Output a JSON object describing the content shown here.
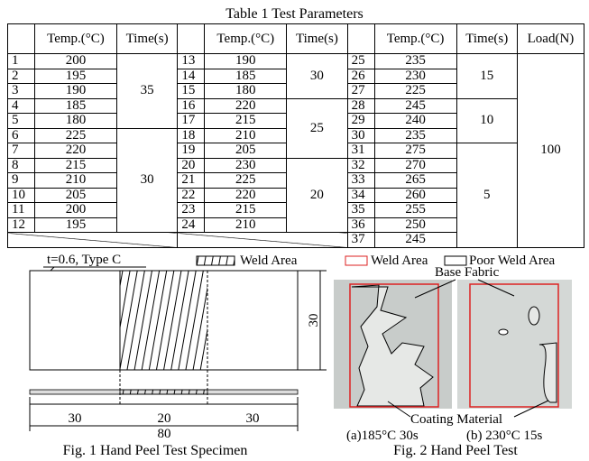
{
  "table": {
    "title": "Table 1 Test Parameters",
    "headers": [
      "Temp.(°C)",
      "Time(s)",
      "Temp.(°C)",
      "Time(s)",
      "Temp.(°C)",
      "Time(s)",
      "Load(N)"
    ],
    "groups": [
      {
        "blocks": [
          {
            "time": 35,
            "rows": [
              {
                "no": 1,
                "temp": 200
              },
              {
                "no": 2,
                "temp": 195
              },
              {
                "no": 3,
                "temp": 190
              },
              {
                "no": 4,
                "temp": 185
              },
              {
                "no": 5,
                "temp": 180
              }
            ]
          },
          {
            "time": 30,
            "rows": [
              {
                "no": 6,
                "temp": 225
              },
              {
                "no": 7,
                "temp": 220
              },
              {
                "no": 8,
                "temp": 215
              },
              {
                "no": 9,
                "temp": 210
              },
              {
                "no": 10,
                "temp": 205
              },
              {
                "no": 11,
                "temp": 200
              },
              {
                "no": 12,
                "temp": 195
              }
            ]
          }
        ]
      },
      {
        "blocks": [
          {
            "time": 30,
            "rows": [
              {
                "no": 13,
                "temp": 190
              },
              {
                "no": 14,
                "temp": 185
              },
              {
                "no": 15,
                "temp": 180
              }
            ]
          },
          {
            "time": 25,
            "rows": [
              {
                "no": 16,
                "temp": 220
              },
              {
                "no": 17,
                "temp": 215
              },
              {
                "no": 18,
                "temp": 210
              },
              {
                "no": 19,
                "temp": 205
              }
            ]
          },
          {
            "time": 20,
            "rows": [
              {
                "no": 20,
                "temp": 230
              },
              {
                "no": 21,
                "temp": 225
              },
              {
                "no": 22,
                "temp": 220
              },
              {
                "no": 23,
                "temp": 215
              },
              {
                "no": 24,
                "temp": 210
              }
            ]
          }
        ]
      },
      {
        "blocks": [
          {
            "time": 15,
            "rows": [
              {
                "no": 25,
                "temp": 235
              },
              {
                "no": 26,
                "temp": 230
              },
              {
                "no": 27,
                "temp": 225
              }
            ]
          },
          {
            "time": 10,
            "rows": [
              {
                "no": 28,
                "temp": 245
              },
              {
                "no": 29,
                "temp": 240
              },
              {
                "no": 30,
                "temp": 235
              }
            ]
          },
          {
            "time": 5,
            "rows": [
              {
                "no": 31,
                "temp": 275
              },
              {
                "no": 32,
                "temp": 270
              },
              {
                "no": 33,
                "temp": 265
              },
              {
                "no": 34,
                "temp": 260
              },
              {
                "no": 35,
                "temp": 255
              },
              {
                "no": 36,
                "temp": 250
              },
              {
                "no": 37,
                "temp": 245
              }
            ]
          }
        ]
      }
    ],
    "load": 100
  },
  "figure1": {
    "spec_label": "t=0.6, Type C",
    "legend": "Weld Area",
    "width_dim": 30,
    "dims": [
      30,
      20,
      30
    ],
    "total_dim": 80,
    "caption": "Fig. 1 Hand Peel Test Specimen"
  },
  "figure2": {
    "legend_weld": "Weld Area",
    "legend_poor": "Poor Weld Area",
    "base_label": "Base Fabric",
    "coating_label": "Coating Material",
    "label_a": "(a)185°C 30s",
    "label_b": "(b) 230°C 15s",
    "caption": "Fig. 2 Hand Peel Test"
  }
}
